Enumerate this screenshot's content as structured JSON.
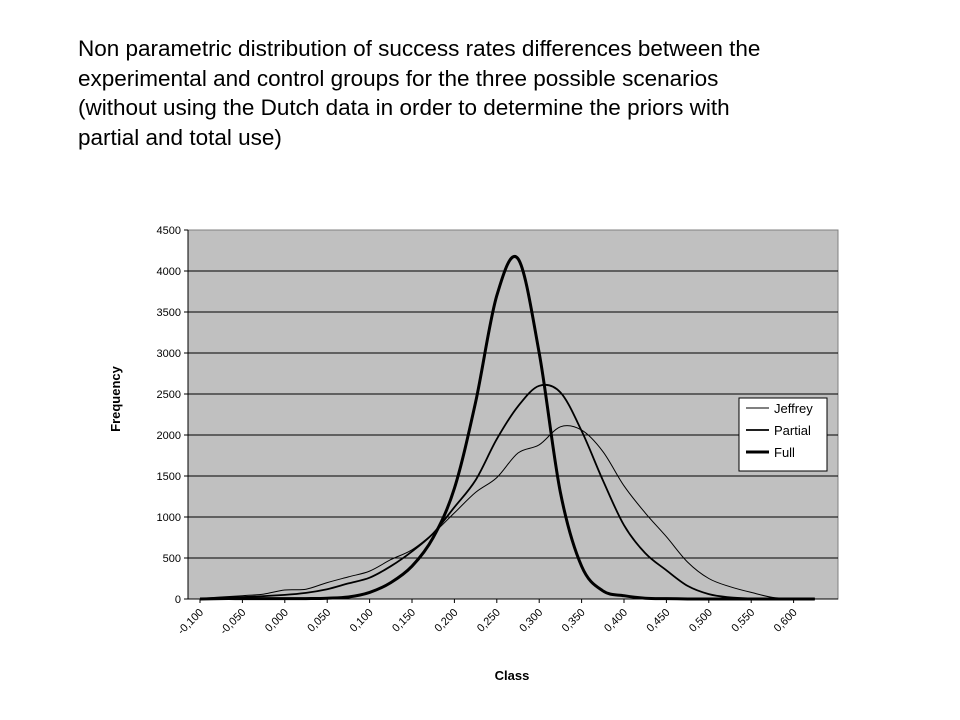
{
  "title_lines": [
    "Non parametric distribution of success rates differences between the",
    "experimental and control groups for the three possible scenarios",
    "(without using the Dutch data in order to determine the priors with",
    "partial and total use)"
  ],
  "chart_data": {
    "type": "line",
    "xlabel": "Class",
    "ylabel": "Frequency",
    "ylim": [
      0,
      4500
    ],
    "yticks": [
      "0",
      "500",
      "1000",
      "1500",
      "2000",
      "2500",
      "3000",
      "3500",
      "4000",
      "4500"
    ],
    "xticks": [
      "-0,100",
      "-0,050",
      "0,000",
      "0,050",
      "0,100",
      "0,150",
      "0,200",
      "0,250",
      "0,300",
      "0,350",
      "0,400",
      "0,450",
      "0,500",
      "0,550",
      "0,600"
    ],
    "grid": "horizontal",
    "background": "#c0c0c0",
    "legend": "right",
    "x": [
      -0.1,
      -0.075,
      -0.05,
      -0.025,
      0.0,
      0.025,
      0.05,
      0.075,
      0.1,
      0.125,
      0.15,
      0.175,
      0.2,
      0.225,
      0.25,
      0.275,
      0.3,
      0.325,
      0.35,
      0.375,
      0.4,
      0.425,
      0.45,
      0.475,
      0.5,
      0.525,
      0.55,
      0.575,
      0.6,
      0.625
    ],
    "series": [
      {
        "name": "Jeffrey",
        "stroke_width": 1,
        "values": [
          5,
          25,
          40,
          60,
          110,
          120,
          200,
          270,
          340,
          480,
          600,
          800,
          1050,
          1300,
          1480,
          1780,
          1880,
          2100,
          2060,
          1800,
          1380,
          1050,
          760,
          450,
          250,
          150,
          80,
          20,
          5,
          0
        ]
      },
      {
        "name": "Partial",
        "stroke_width": 1.8,
        "values": [
          0,
          15,
          25,
          35,
          50,
          75,
          120,
          190,
          260,
          400,
          580,
          800,
          1120,
          1450,
          1950,
          2350,
          2600,
          2520,
          2050,
          1450,
          900,
          560,
          350,
          160,
          60,
          20,
          5,
          0,
          0,
          0
        ]
      },
      {
        "name": "Full",
        "stroke_width": 3,
        "values": [
          0,
          5,
          5,
          5,
          5,
          5,
          10,
          25,
          80,
          200,
          400,
          750,
          1350,
          2400,
          3700,
          4150,
          3000,
          1300,
          400,
          100,
          40,
          10,
          5,
          0,
          0,
          0,
          0,
          0,
          0,
          0
        ]
      }
    ]
  }
}
